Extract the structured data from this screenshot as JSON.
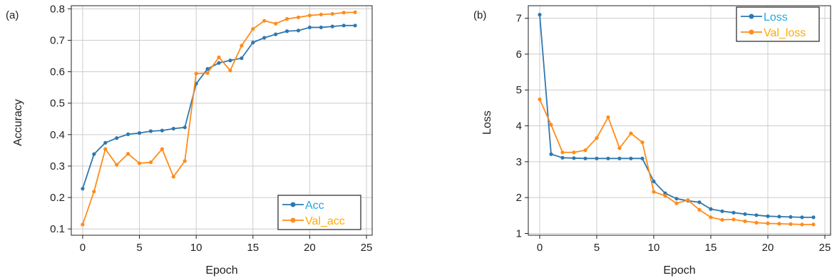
{
  "chart_data": [
    {
      "type": "line",
      "panel_label": "(a)",
      "xlabel": "Epoch",
      "ylabel": "Accuracy",
      "xlim": [
        -1,
        25.5
      ],
      "ylim": [
        0.08,
        0.81
      ],
      "xticks": [
        0,
        5,
        10,
        15,
        20,
        25
      ],
      "yticks": [
        0.1,
        0.2,
        0.3,
        0.4,
        0.5,
        0.6,
        0.7,
        0.8
      ],
      "ytick_labels": [
        "0.1",
        "0.2",
        "0.3",
        "0.4",
        "0.5",
        "0.6",
        "0.7",
        "0.8"
      ],
      "grid": true,
      "legend_position": "bottom-right",
      "x": [
        0,
        1,
        2,
        3,
        4,
        5,
        6,
        7,
        8,
        9,
        10,
        11,
        12,
        13,
        14,
        15,
        16,
        17,
        18,
        19,
        20,
        21,
        22,
        23,
        24
      ],
      "series": [
        {
          "name": "Acc",
          "color": "#2f78b0",
          "label_color": "#22aadd",
          "values": [
            0.228,
            0.338,
            0.374,
            0.389,
            0.401,
            0.405,
            0.411,
            0.413,
            0.419,
            0.423,
            0.562,
            0.609,
            0.628,
            0.636,
            0.643,
            0.693,
            0.708,
            0.719,
            0.729,
            0.731,
            0.741,
            0.741,
            0.744,
            0.747,
            0.747
          ]
        },
        {
          "name": "Val_acc",
          "color": "#ff8c1a",
          "label_color": "#ffaa00",
          "values": [
            0.114,
            0.219,
            0.354,
            0.304,
            0.339,
            0.309,
            0.312,
            0.354,
            0.266,
            0.316,
            0.594,
            0.596,
            0.646,
            0.604,
            0.683,
            0.736,
            0.762,
            0.753,
            0.768,
            0.773,
            0.779,
            0.782,
            0.784,
            0.788,
            0.789
          ]
        }
      ]
    },
    {
      "type": "line",
      "panel_label": "(b)",
      "xlabel": "Epoch",
      "ylabel": "Loss",
      "xlim": [
        -1,
        25.5
      ],
      "ylim": [
        0.95,
        7.35
      ],
      "xticks": [
        0,
        5,
        10,
        15,
        20,
        25
      ],
      "yticks": [
        1,
        2,
        3,
        4,
        5,
        6,
        7
      ],
      "ytick_labels": [
        "1",
        "2",
        "3",
        "4",
        "5",
        "6",
        "7"
      ],
      "grid": true,
      "legend_position": "top-right",
      "x": [
        0,
        1,
        2,
        3,
        4,
        5,
        6,
        7,
        8,
        9,
        10,
        11,
        12,
        13,
        14,
        15,
        16,
        17,
        18,
        19,
        20,
        21,
        22,
        23,
        24
      ],
      "series": [
        {
          "name": "Loss",
          "color": "#2f78b0",
          "label_color": "#22aadd",
          "values": [
            7.1,
            3.21,
            3.11,
            3.1,
            3.09,
            3.09,
            3.09,
            3.09,
            3.09,
            3.09,
            2.45,
            2.12,
            1.97,
            1.91,
            1.87,
            1.68,
            1.62,
            1.58,
            1.54,
            1.51,
            1.48,
            1.47,
            1.46,
            1.45,
            1.45
          ]
        },
        {
          "name": "Val_loss",
          "color": "#ff8c1a",
          "label_color": "#ffaa00",
          "values": [
            4.74,
            4.03,
            3.26,
            3.26,
            3.32,
            3.66,
            4.24,
            3.38,
            3.79,
            3.54,
            2.16,
            2.05,
            1.84,
            1.93,
            1.66,
            1.45,
            1.38,
            1.39,
            1.34,
            1.3,
            1.28,
            1.27,
            1.26,
            1.25,
            1.25
          ]
        }
      ]
    }
  ]
}
